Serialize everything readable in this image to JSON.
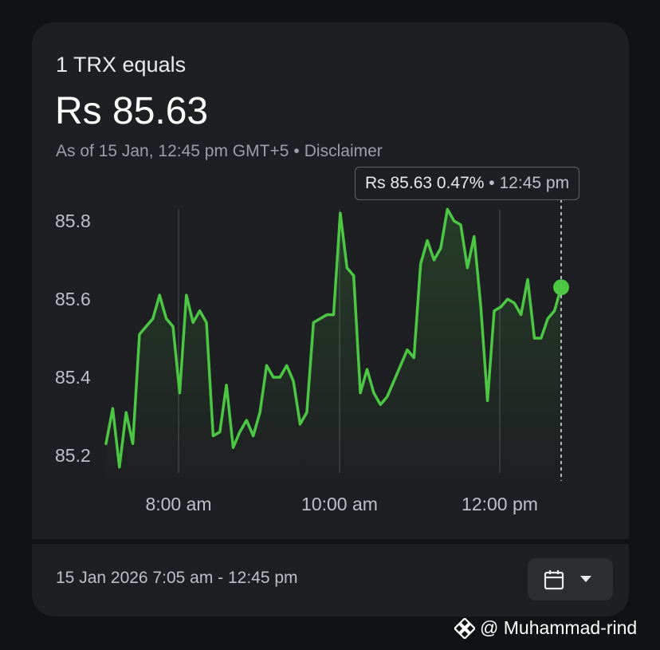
{
  "header": {
    "title": "1 TRX equals",
    "price": "Rs 85.63",
    "as_of": "As of 15 Jan, 12:45 pm GMT+5",
    "separator": "•",
    "disclaimer": "Disclaimer"
  },
  "tooltip": {
    "price": "Rs 85.63",
    "change": "0.47%",
    "separator": "•",
    "time": "12:45 pm"
  },
  "footer": {
    "range": "15 Jan 2026 7:05 am - 12:45 pm",
    "calendar_icon": "calendar-icon",
    "dropdown_icon": "caret-down-icon"
  },
  "watermark": {
    "text": "@ Muhammad-rind",
    "icon": "binance-logo-icon"
  },
  "colors": {
    "line": "#4cc744",
    "background": "#1e1f22",
    "page": "#111214"
  },
  "chart_data": {
    "type": "line",
    "y_ticks": [
      "85.2",
      "85.4",
      "85.6",
      "85.8"
    ],
    "x_ticks": [
      "8:00 am",
      "10:00 am",
      "12:00 pm"
    ],
    "ylim": [
      85.2,
      85.8
    ],
    "grid": "vertical lines at x ticks",
    "series": [
      {
        "values": [
          85.23,
          85.32,
          85.17,
          85.31,
          85.23,
          85.51,
          85.53,
          85.55,
          85.61,
          85.55,
          85.53,
          85.36,
          85.61,
          85.54,
          85.57,
          85.54,
          85.25,
          85.26,
          85.38,
          85.22,
          85.26,
          85.29,
          85.25,
          85.31,
          85.43,
          85.4,
          85.4,
          85.43,
          85.39,
          85.28,
          85.31,
          85.54,
          85.55,
          85.56,
          85.56,
          85.82,
          85.68,
          85.66,
          85.36,
          85.42,
          85.36,
          85.33,
          85.35,
          85.39,
          85.43,
          85.47,
          85.45,
          85.69,
          85.75,
          85.7,
          85.73,
          85.83,
          85.8,
          85.79,
          85.68,
          85.76,
          85.58,
          85.34,
          85.57,
          85.58,
          85.6,
          85.59,
          85.56,
          85.65,
          85.5,
          85.5,
          85.55,
          85.57,
          85.63
        ]
      }
    ]
  }
}
